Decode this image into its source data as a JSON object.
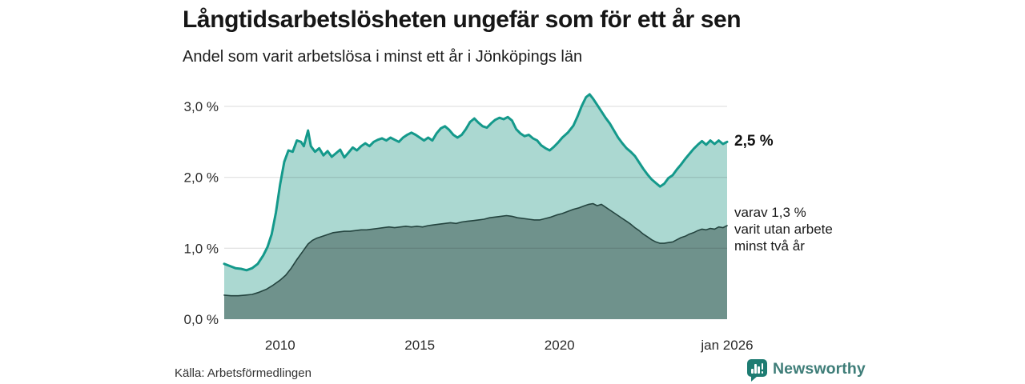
{
  "chart_data": {
    "type": "area",
    "title": "Långtidsarbetslösheten ungefär som för ett år sen",
    "subtitle": "Andel som varit arbetslösa i minst ett år i Jönköpings län",
    "unit": "%",
    "grid": "horizontal",
    "legend": "none",
    "x_range": [
      2008,
      2026
    ],
    "y_range": [
      0,
      3.3
    ],
    "x_axis": {
      "ticks": [
        {
          "value": 2010,
          "label": "2010"
        },
        {
          "value": 2015,
          "label": "2015"
        },
        {
          "value": 2020,
          "label": "2020"
        },
        {
          "value": 2026,
          "label": "jan 2026"
        }
      ]
    },
    "y_axis": {
      "ticks": [
        {
          "value": 0,
          "label": "0,0 %"
        },
        {
          "value": 1,
          "label": "1,0 %"
        },
        {
          "value": 2,
          "label": "2,0 %"
        },
        {
          "value": 3,
          "label": "3,0 %"
        }
      ]
    },
    "series": [
      {
        "name": "Andel som varit arbetslösa i minst ett år",
        "color": "#14998b",
        "fill": "#abd8d1",
        "stroke_width": 3,
        "end_value_label": "2,5 %",
        "points": [
          [
            2008,
            0.78
          ],
          [
            2008.2,
            0.75
          ],
          [
            2008.4,
            0.72
          ],
          [
            2008.6,
            0.71
          ],
          [
            2008.8,
            0.69
          ],
          [
            2009,
            0.72
          ],
          [
            2009.2,
            0.78
          ],
          [
            2009.4,
            0.9
          ],
          [
            2009.55,
            1.02
          ],
          [
            2009.7,
            1.2
          ],
          [
            2009.85,
            1.5
          ],
          [
            2010,
            1.9
          ],
          [
            2010.15,
            2.22
          ],
          [
            2010.3,
            2.38
          ],
          [
            2010.45,
            2.36
          ],
          [
            2010.6,
            2.52
          ],
          [
            2010.75,
            2.5
          ],
          [
            2010.85,
            2.44
          ],
          [
            2011,
            2.66
          ],
          [
            2011.1,
            2.44
          ],
          [
            2011.25,
            2.36
          ],
          [
            2011.4,
            2.41
          ],
          [
            2011.55,
            2.31
          ],
          [
            2011.7,
            2.37
          ],
          [
            2011.85,
            2.29
          ],
          [
            2012,
            2.34
          ],
          [
            2012.15,
            2.39
          ],
          [
            2012.3,
            2.28
          ],
          [
            2012.45,
            2.35
          ],
          [
            2012.6,
            2.42
          ],
          [
            2012.75,
            2.38
          ],
          [
            2012.9,
            2.44
          ],
          [
            2013.05,
            2.48
          ],
          [
            2013.2,
            2.44
          ],
          [
            2013.35,
            2.5
          ],
          [
            2013.5,
            2.53
          ],
          [
            2013.65,
            2.55
          ],
          [
            2013.8,
            2.52
          ],
          [
            2013.95,
            2.56
          ],
          [
            2014.1,
            2.53
          ],
          [
            2014.25,
            2.5
          ],
          [
            2014.4,
            2.56
          ],
          [
            2014.55,
            2.6
          ],
          [
            2014.7,
            2.63
          ],
          [
            2014.85,
            2.6
          ],
          [
            2015,
            2.56
          ],
          [
            2015.15,
            2.52
          ],
          [
            2015.3,
            2.56
          ],
          [
            2015.45,
            2.52
          ],
          [
            2015.6,
            2.62
          ],
          [
            2015.75,
            2.69
          ],
          [
            2015.9,
            2.72
          ],
          [
            2016.05,
            2.67
          ],
          [
            2016.2,
            2.6
          ],
          [
            2016.35,
            2.56
          ],
          [
            2016.5,
            2.6
          ],
          [
            2016.65,
            2.68
          ],
          [
            2016.8,
            2.78
          ],
          [
            2016.95,
            2.83
          ],
          [
            2017.1,
            2.77
          ],
          [
            2017.25,
            2.72
          ],
          [
            2017.4,
            2.7
          ],
          [
            2017.55,
            2.76
          ],
          [
            2017.7,
            2.81
          ],
          [
            2017.85,
            2.84
          ],
          [
            2018,
            2.82
          ],
          [
            2018.15,
            2.85
          ],
          [
            2018.3,
            2.8
          ],
          [
            2018.45,
            2.68
          ],
          [
            2018.6,
            2.62
          ],
          [
            2018.75,
            2.58
          ],
          [
            2018.9,
            2.6
          ],
          [
            2019.05,
            2.55
          ],
          [
            2019.2,
            2.52
          ],
          [
            2019.35,
            2.45
          ],
          [
            2019.5,
            2.41
          ],
          [
            2019.65,
            2.38
          ],
          [
            2019.8,
            2.43
          ],
          [
            2019.95,
            2.49
          ],
          [
            2020.1,
            2.56
          ],
          [
            2020.3,
            2.63
          ],
          [
            2020.5,
            2.73
          ],
          [
            2020.65,
            2.86
          ],
          [
            2020.8,
            3.01
          ],
          [
            2020.95,
            3.13
          ],
          [
            2021.08,
            3.17
          ],
          [
            2021.2,
            3.11
          ],
          [
            2021.35,
            3.02
          ],
          [
            2021.5,
            2.93
          ],
          [
            2021.65,
            2.84
          ],
          [
            2021.8,
            2.76
          ],
          [
            2021.95,
            2.66
          ],
          [
            2022.1,
            2.56
          ],
          [
            2022.25,
            2.48
          ],
          [
            2022.4,
            2.41
          ],
          [
            2022.55,
            2.36
          ],
          [
            2022.7,
            2.3
          ],
          [
            2022.85,
            2.21
          ],
          [
            2023,
            2.12
          ],
          [
            2023.15,
            2.04
          ],
          [
            2023.3,
            1.97
          ],
          [
            2023.45,
            1.92
          ],
          [
            2023.6,
            1.87
          ],
          [
            2023.75,
            1.91
          ],
          [
            2023.9,
            1.99
          ],
          [
            2024.05,
            2.03
          ],
          [
            2024.2,
            2.11
          ],
          [
            2024.35,
            2.18
          ],
          [
            2024.5,
            2.26
          ],
          [
            2024.65,
            2.33
          ],
          [
            2024.8,
            2.4
          ],
          [
            2024.95,
            2.46
          ],
          [
            2025.1,
            2.51
          ],
          [
            2025.25,
            2.46
          ],
          [
            2025.4,
            2.52
          ],
          [
            2025.55,
            2.47
          ],
          [
            2025.7,
            2.52
          ],
          [
            2025.85,
            2.47
          ],
          [
            2026,
            2.5
          ]
        ]
      },
      {
        "name": "varav varit utan arbete minst två år",
        "color": "#24443f",
        "fill": "#6f928c",
        "stroke_width": 1.6,
        "end_value_label": "varav 1,3 %",
        "points": [
          [
            2008,
            0.34
          ],
          [
            2008.25,
            0.33
          ],
          [
            2008.5,
            0.33
          ],
          [
            2008.75,
            0.34
          ],
          [
            2009,
            0.35
          ],
          [
            2009.25,
            0.38
          ],
          [
            2009.5,
            0.42
          ],
          [
            2009.75,
            0.48
          ],
          [
            2010,
            0.55
          ],
          [
            2010.2,
            0.62
          ],
          [
            2010.4,
            0.72
          ],
          [
            2010.6,
            0.84
          ],
          [
            2010.8,
            0.95
          ],
          [
            2011,
            1.06
          ],
          [
            2011.15,
            1.11
          ],
          [
            2011.3,
            1.14
          ],
          [
            2011.45,
            1.16
          ],
          [
            2011.6,
            1.18
          ],
          [
            2011.75,
            1.2
          ],
          [
            2011.9,
            1.22
          ],
          [
            2012.1,
            1.23
          ],
          [
            2012.3,
            1.24
          ],
          [
            2012.5,
            1.24
          ],
          [
            2012.7,
            1.25
          ],
          [
            2012.9,
            1.26
          ],
          [
            2013.1,
            1.26
          ],
          [
            2013.3,
            1.27
          ],
          [
            2013.5,
            1.28
          ],
          [
            2013.7,
            1.29
          ],
          [
            2013.9,
            1.3
          ],
          [
            2014.1,
            1.29
          ],
          [
            2014.3,
            1.3
          ],
          [
            2014.5,
            1.31
          ],
          [
            2014.7,
            1.3
          ],
          [
            2014.9,
            1.31
          ],
          [
            2015.1,
            1.3
          ],
          [
            2015.3,
            1.32
          ],
          [
            2015.5,
            1.33
          ],
          [
            2015.7,
            1.34
          ],
          [
            2015.9,
            1.35
          ],
          [
            2016.1,
            1.36
          ],
          [
            2016.3,
            1.35
          ],
          [
            2016.5,
            1.37
          ],
          [
            2016.7,
            1.38
          ],
          [
            2016.9,
            1.39
          ],
          [
            2017.1,
            1.4
          ],
          [
            2017.3,
            1.41
          ],
          [
            2017.5,
            1.43
          ],
          [
            2017.7,
            1.44
          ],
          [
            2017.9,
            1.45
          ],
          [
            2018.1,
            1.46
          ],
          [
            2018.3,
            1.45
          ],
          [
            2018.5,
            1.43
          ],
          [
            2018.7,
            1.42
          ],
          [
            2018.9,
            1.41
          ],
          [
            2019.1,
            1.4
          ],
          [
            2019.3,
            1.4
          ],
          [
            2019.5,
            1.42
          ],
          [
            2019.7,
            1.44
          ],
          [
            2019.9,
            1.47
          ],
          [
            2020.1,
            1.49
          ],
          [
            2020.3,
            1.52
          ],
          [
            2020.5,
            1.55
          ],
          [
            2020.7,
            1.57
          ],
          [
            2020.9,
            1.6
          ],
          [
            2021.05,
            1.62
          ],
          [
            2021.2,
            1.63
          ],
          [
            2021.35,
            1.6
          ],
          [
            2021.5,
            1.62
          ],
          [
            2021.65,
            1.58
          ],
          [
            2021.8,
            1.54
          ],
          [
            2021.95,
            1.5
          ],
          [
            2022.1,
            1.46
          ],
          [
            2022.25,
            1.42
          ],
          [
            2022.4,
            1.38
          ],
          [
            2022.55,
            1.34
          ],
          [
            2022.7,
            1.29
          ],
          [
            2022.85,
            1.25
          ],
          [
            2023,
            1.2
          ],
          [
            2023.15,
            1.16
          ],
          [
            2023.3,
            1.12
          ],
          [
            2023.45,
            1.09
          ],
          [
            2023.6,
            1.07
          ],
          [
            2023.75,
            1.07
          ],
          [
            2023.9,
            1.08
          ],
          [
            2024.05,
            1.09
          ],
          [
            2024.2,
            1.12
          ],
          [
            2024.35,
            1.15
          ],
          [
            2024.5,
            1.17
          ],
          [
            2024.65,
            1.2
          ],
          [
            2024.8,
            1.22
          ],
          [
            2024.95,
            1.25
          ],
          [
            2025.1,
            1.27
          ],
          [
            2025.25,
            1.26
          ],
          [
            2025.4,
            1.28
          ],
          [
            2025.55,
            1.27
          ],
          [
            2025.7,
            1.3
          ],
          [
            2025.85,
            1.29
          ],
          [
            2026,
            1.32
          ]
        ]
      }
    ],
    "annotations": {
      "end_value": "2,5 %",
      "sub_lines": [
        "varav 1,3 %",
        "varit utan arbete",
        "minst två år"
      ]
    },
    "gridline_color": "rgba(0,0,0,0.14)"
  },
  "footer": {
    "source": "Källa: Arbetsförmedlingen",
    "brand": "Newsworthy",
    "brand_color": "#1e7c72"
  }
}
